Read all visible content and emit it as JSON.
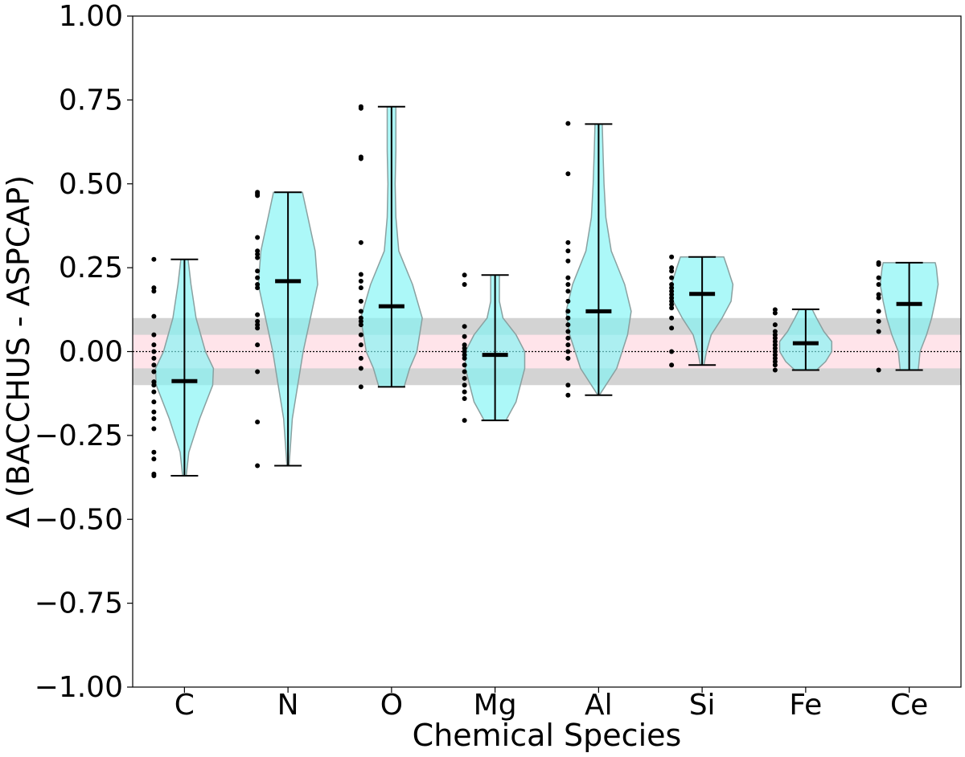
{
  "chart_data": {
    "type": "violin",
    "title": "",
    "xlabel": "Chemical Species",
    "ylabel": "Δ (BACCHUS - ASPCAP)",
    "ylim": [
      -1.0,
      1.0
    ],
    "yticks": [
      1.0,
      0.75,
      0.5,
      0.25,
      0.0,
      -0.25,
      -0.5,
      -0.75,
      -1.0
    ],
    "ytick_labels": [
      "1.00",
      "0.75",
      "0.50",
      "0.25",
      "0.00",
      "−0.25",
      "−0.50",
      "−0.75",
      "−1.00"
    ],
    "reference_line": 0.0,
    "bands": [
      {
        "name": "grey-band",
        "range": [
          -0.1,
          0.1
        ],
        "color": "#d3d3d3"
      },
      {
        "name": "pink-band",
        "range": [
          -0.05,
          0.05
        ],
        "color": "#ffe4ea"
      }
    ],
    "colors": {
      "violin_fill": "#7ff5f5",
      "violin_edge": "#8aa0a0",
      "point": "#000000",
      "median": "#000000"
    },
    "categories": [
      "C",
      "N",
      "O",
      "Mg",
      "Al",
      "Si",
      "Fe",
      "Ce"
    ],
    "series": [
      {
        "name": "C",
        "min": -0.37,
        "max": 0.275,
        "median": -0.088,
        "points": [
          0.275,
          0.19,
          0.18,
          0.105,
          0.05,
          0.02,
          0.0,
          -0.02,
          -0.04,
          -0.06,
          -0.09,
          -0.1,
          -0.12,
          -0.15,
          -0.18,
          -0.2,
          -0.23,
          -0.3,
          -0.32,
          -0.365,
          -0.37
        ],
        "density": [
          [
            -0.37,
            0.05
          ],
          [
            -0.3,
            0.12
          ],
          [
            -0.2,
            0.42
          ],
          [
            -0.1,
            0.78
          ],
          [
            -0.05,
            0.8
          ],
          [
            0.0,
            0.58
          ],
          [
            0.1,
            0.32
          ],
          [
            0.2,
            0.18
          ],
          [
            0.275,
            0.1
          ]
        ]
      },
      {
        "name": "N",
        "min": -0.34,
        "max": 0.475,
        "median": 0.21,
        "points": [
          0.475,
          0.47,
          0.465,
          0.34,
          0.3,
          0.29,
          0.28,
          0.24,
          0.22,
          0.2,
          0.19,
          0.11,
          0.09,
          0.08,
          0.07,
          0.02,
          -0.06,
          -0.21,
          -0.34
        ],
        "density": [
          [
            -0.34,
            0.03
          ],
          [
            -0.2,
            0.12
          ],
          [
            0.0,
            0.42
          ],
          [
            0.1,
            0.62
          ],
          [
            0.2,
            0.82
          ],
          [
            0.3,
            0.75
          ],
          [
            0.4,
            0.55
          ],
          [
            0.475,
            0.4
          ]
        ]
      },
      {
        "name": "O",
        "min": -0.105,
        "max": 0.73,
        "median": 0.135,
        "points": [
          0.73,
          0.725,
          0.58,
          0.575,
          0.325,
          0.23,
          0.21,
          0.19,
          0.15,
          0.12,
          0.1,
          0.09,
          0.08,
          0.05,
          0.02,
          -0.02,
          -0.05,
          -0.105
        ],
        "density": [
          [
            -0.105,
            0.35
          ],
          [
            -0.05,
            0.5
          ],
          [
            0.0,
            0.7
          ],
          [
            0.1,
            0.85
          ],
          [
            0.2,
            0.58
          ],
          [
            0.3,
            0.2
          ],
          [
            0.4,
            0.12
          ],
          [
            0.5,
            0.1
          ],
          [
            0.6,
            0.12
          ],
          [
            0.7,
            0.12
          ],
          [
            0.73,
            0.12
          ]
        ]
      },
      {
        "name": "Mg",
        "min": -0.205,
        "max": 0.228,
        "median": -0.01,
        "points": [
          0.228,
          0.2,
          0.075,
          0.045,
          0.02,
          0.01,
          0.0,
          -0.01,
          -0.02,
          -0.04,
          -0.06,
          -0.08,
          -0.1,
          -0.12,
          -0.14,
          -0.205
        ],
        "density": [
          [
            -0.205,
            0.3
          ],
          [
            -0.15,
            0.58
          ],
          [
            -0.05,
            0.82
          ],
          [
            0.0,
            0.82
          ],
          [
            0.05,
            0.58
          ],
          [
            0.1,
            0.22
          ],
          [
            0.15,
            0.12
          ],
          [
            0.2,
            0.12
          ],
          [
            0.228,
            0.12
          ]
        ]
      },
      {
        "name": "Al",
        "min": -0.13,
        "max": 0.678,
        "median": 0.12,
        "points": [
          0.68,
          0.53,
          0.325,
          0.3,
          0.27,
          0.22,
          0.2,
          0.18,
          0.15,
          0.12,
          0.1,
          0.08,
          0.06,
          0.04,
          0.02,
          0.0,
          -0.02,
          -0.1,
          -0.13
        ],
        "density": [
          [
            -0.13,
            0.02
          ],
          [
            -0.05,
            0.5
          ],
          [
            0.05,
            0.8
          ],
          [
            0.12,
            0.9
          ],
          [
            0.2,
            0.72
          ],
          [
            0.3,
            0.35
          ],
          [
            0.4,
            0.2
          ],
          [
            0.5,
            0.15
          ],
          [
            0.6,
            0.12
          ],
          [
            0.678,
            0.1
          ]
        ]
      },
      {
        "name": "Si",
        "min": -0.04,
        "max": 0.282,
        "median": 0.172,
        "points": [
          0.282,
          0.25,
          0.24,
          0.22,
          0.2,
          0.19,
          0.18,
          0.17,
          0.16,
          0.15,
          0.14,
          0.13,
          0.1,
          0.07,
          0.0,
          -0.04
        ],
        "density": [
          [
            -0.04,
            0.05
          ],
          [
            0.0,
            0.12
          ],
          [
            0.05,
            0.25
          ],
          [
            0.1,
            0.55
          ],
          [
            0.15,
            0.8
          ],
          [
            0.2,
            0.85
          ],
          [
            0.25,
            0.7
          ],
          [
            0.282,
            0.6
          ]
        ]
      },
      {
        "name": "Fe",
        "min": -0.055,
        "max": 0.126,
        "median": 0.025,
        "points": [
          0.125,
          0.115,
          0.08,
          0.06,
          0.05,
          0.04,
          0.03,
          0.02,
          0.01,
          0.0,
          -0.01,
          -0.02,
          -0.03,
          -0.04,
          -0.055
        ],
        "density": [
          [
            -0.055,
            0.3
          ],
          [
            -0.03,
            0.55
          ],
          [
            0.0,
            0.72
          ],
          [
            0.03,
            0.72
          ],
          [
            0.06,
            0.5
          ],
          [
            0.1,
            0.3
          ],
          [
            0.126,
            0.18
          ]
        ]
      },
      {
        "name": "Ce",
        "min": -0.055,
        "max": 0.265,
        "median": 0.142,
        "points": [
          0.265,
          0.26,
          0.22,
          0.2,
          0.17,
          0.16,
          0.12,
          0.09,
          0.06,
          -0.055
        ],
        "density": [
          [
            -0.055,
            0.25
          ],
          [
            0.0,
            0.3
          ],
          [
            0.05,
            0.48
          ],
          [
            0.1,
            0.62
          ],
          [
            0.15,
            0.72
          ],
          [
            0.2,
            0.8
          ],
          [
            0.25,
            0.75
          ],
          [
            0.265,
            0.72
          ]
        ]
      }
    ]
  }
}
